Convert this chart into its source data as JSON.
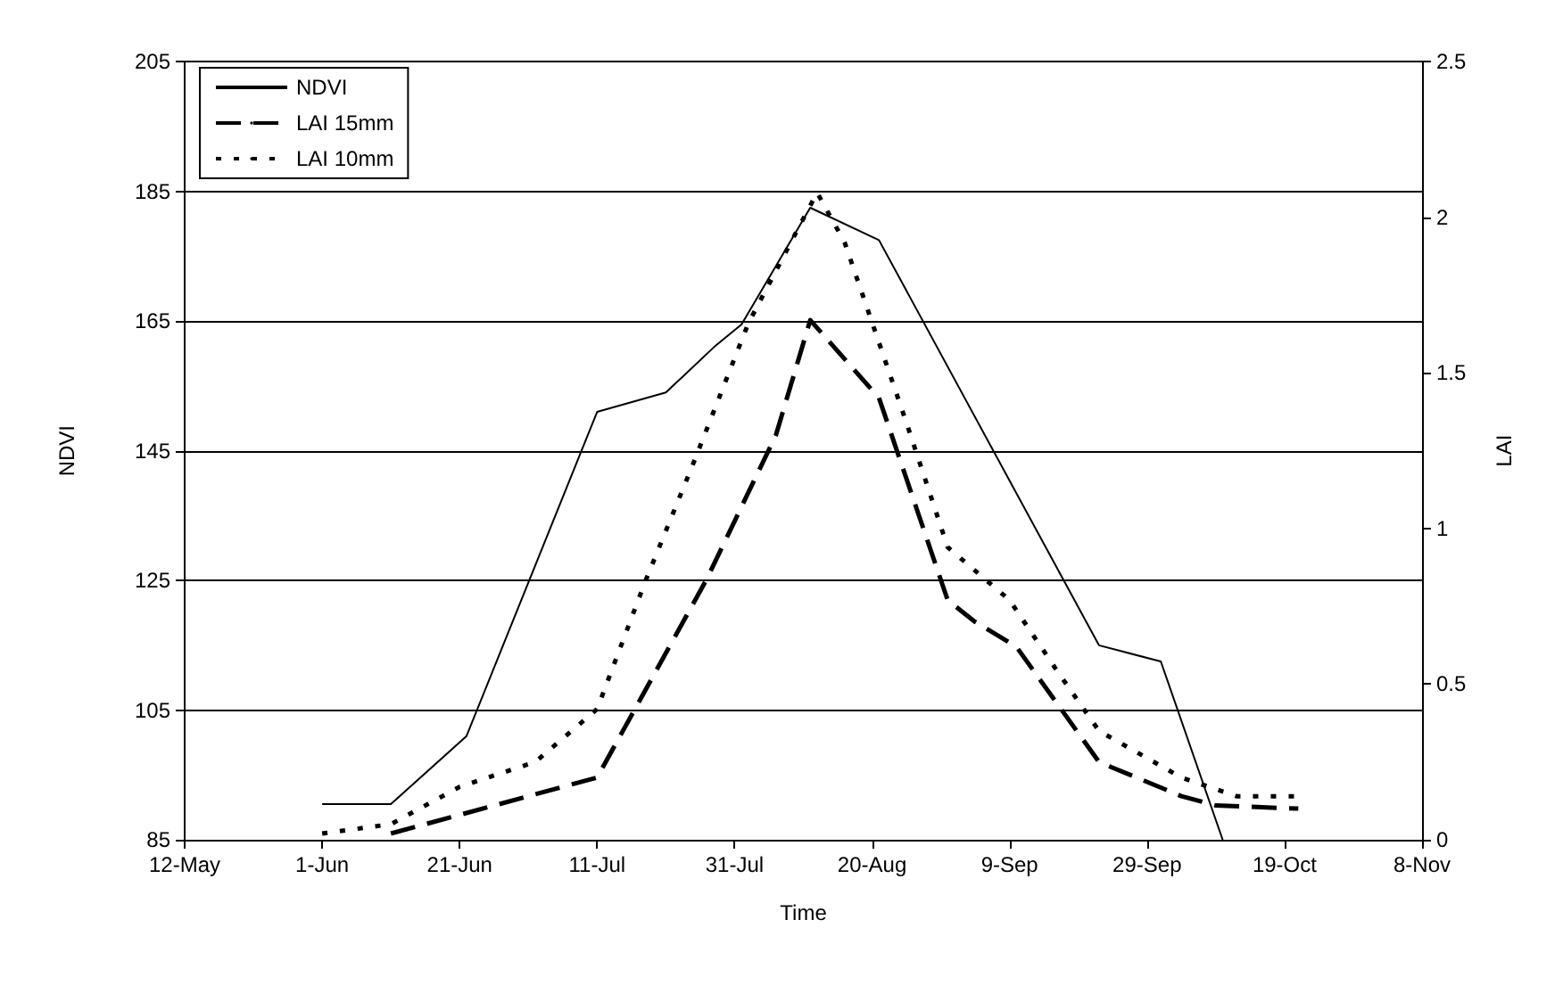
{
  "chart_data": {
    "type": "line",
    "xlabel": "Time",
    "ylabel": "NDVI",
    "y2label": "LAI",
    "xlim": [
      "--05-12",
      "--11-08"
    ],
    "xticks": [
      {
        "value": "--05-12",
        "label": "12-May"
      },
      {
        "value": "--06-01",
        "label": "1-Jun"
      },
      {
        "value": "--06-21",
        "label": "21-Jun"
      },
      {
        "value": "--07-11",
        "label": "11-Jul"
      },
      {
        "value": "--07-31",
        "label": "31-Jul"
      },
      {
        "value": "--08-20",
        "label": "20-Aug"
      },
      {
        "value": "--09-09",
        "label": "9-Sep"
      },
      {
        "value": "--09-29",
        "label": "29-Sep"
      },
      {
        "value": "--10-19",
        "label": "19-Oct"
      },
      {
        "value": "--11-08",
        "label": "8-Nov"
      }
    ],
    "ylim": [
      85,
      205
    ],
    "yticks": [
      85,
      105,
      125,
      145,
      165,
      185,
      205
    ],
    "y2lim": [
      0,
      2.5
    ],
    "y2ticks": [
      0,
      0.5,
      1,
      1.5,
      2,
      2.5
    ],
    "grid": "y",
    "legend": "top left",
    "series": [
      {
        "name": "NDVI",
        "color": "#000000",
        "line_style": "solid",
        "x": [
          "--06-01",
          "--06-11",
          "--06-22",
          "--07-11",
          "--07-21",
          "--07-28",
          "--08-01",
          "--08-11",
          "--08-21",
          "--09-22",
          "--10-01",
          "--10-10"
        ],
        "values": [
          90.5,
          90.5,
          101,
          151,
          154,
          161,
          164.5,
          182.5,
          177.5,
          115,
          112.5,
          85
        ]
      },
      {
        "name": "LAI 15mm",
        "color": "#000000",
        "line_style": "dashed",
        "axis": "y2",
        "x": [
          "--06-11",
          "--06-21",
          "--07-11",
          "--07-15",
          "--07-27",
          "--08-06",
          "--08-11",
          "--08-21",
          "--08-31",
          "--09-04",
          "--09-10",
          "--09-22",
          "--10-04",
          "--10-09",
          "--10-21"
        ],
        "values": [
          0.02,
          0.08,
          0.2,
          0.36,
          0.84,
          1.3,
          1.67,
          1.42,
          0.77,
          0.7,
          0.62,
          0.25,
          0.14,
          0.11,
          0.1
        ]
      },
      {
        "name": "LAI 10mm",
        "color": "#000000",
        "line_style": "dotted",
        "axis": "y2",
        "x": [
          "--06-01",
          "--06-11",
          "--06-21",
          "--07-02",
          "--07-11",
          "--07-18",
          "--07-25",
          "--08-02",
          "--08-12",
          "--08-16",
          "--08-25",
          "--08-31",
          "--09-09",
          "--09-16",
          "--09-22",
          "--10-04",
          "--10-12",
          "--10-21"
        ],
        "values": [
          0.02,
          0.05,
          0.17,
          0.25,
          0.42,
          0.83,
          1.21,
          1.66,
          2.08,
          1.92,
          1.34,
          0.94,
          0.77,
          0.54,
          0.35,
          0.2,
          0.14,
          0.14
        ]
      }
    ]
  }
}
